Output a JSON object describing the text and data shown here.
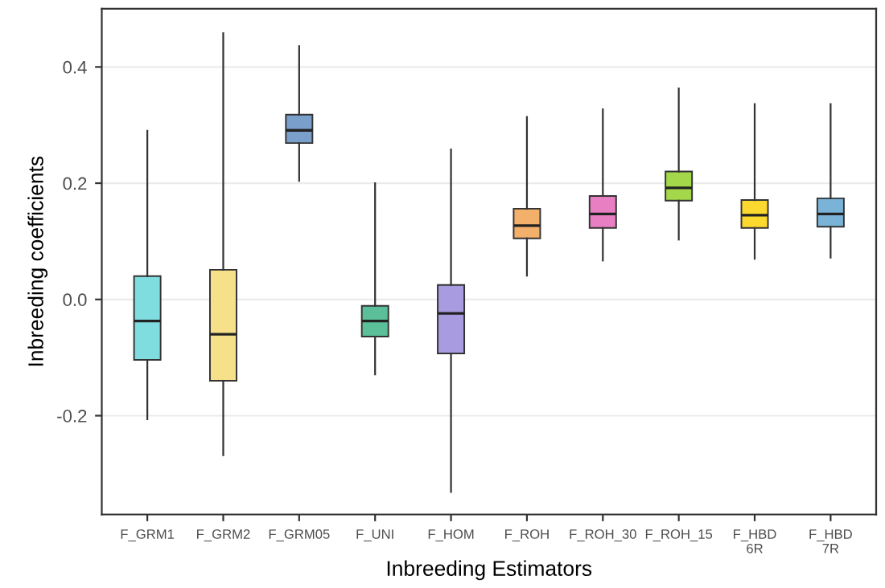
{
  "chart_data": {
    "type": "box",
    "xlabel": "Inbreeding Estimators",
    "ylabel": "Inbreeding coefficients",
    "categories": [
      "F_GRM1",
      "F_GRM2",
      "F_GRM05",
      "F_UNI",
      "F_HOM",
      "F_ROH",
      "F_ROH_30",
      "F_ROH_15",
      "F_HBD\n6R",
      "F_HBD\n7R"
    ],
    "colors": [
      "#7fdde0",
      "#f6e08a",
      "#7b9fcb",
      "#5bbf9a",
      "#a99be0",
      "#f2b06a",
      "#e87fc2",
      "#a4d84a",
      "#fcd92e",
      "#7ab3d8"
    ],
    "boxes": [
      {
        "low": -0.206,
        "q1": -0.104,
        "median": -0.037,
        "q3": 0.04,
        "high": 0.29
      },
      {
        "low": -0.268,
        "q1": -0.14,
        "median": -0.06,
        "q3": 0.051,
        "high": 0.458
      },
      {
        "low": 0.204,
        "q1": 0.269,
        "median": 0.291,
        "q3": 0.318,
        "high": 0.436
      },
      {
        "low": -0.129,
        "q1": -0.064,
        "median": -0.037,
        "q3": -0.011,
        "high": 0.2
      },
      {
        "low": -0.331,
        "q1": -0.093,
        "median": -0.024,
        "q3": 0.025,
        "high": 0.258
      },
      {
        "low": 0.041,
        "q1": 0.105,
        "median": 0.127,
        "q3": 0.156,
        "high": 0.314
      },
      {
        "low": 0.067,
        "q1": 0.123,
        "median": 0.147,
        "q3": 0.178,
        "high": 0.327
      },
      {
        "low": 0.103,
        "q1": 0.17,
        "median": 0.192,
        "q3": 0.22,
        "high": 0.363
      },
      {
        "low": 0.07,
        "q1": 0.123,
        "median": 0.145,
        "q3": 0.171,
        "high": 0.336
      },
      {
        "low": 0.072,
        "q1": 0.125,
        "median": 0.147,
        "q3": 0.174,
        "high": 0.336
      }
    ],
    "ylim": [
      -0.37,
      0.5
    ],
    "yticks": [
      {
        "value": -0.2,
        "label": "-0.2"
      },
      {
        "value": 0.0,
        "label": "0.0"
      },
      {
        "value": 0.2,
        "label": "0.2"
      },
      {
        "value": 0.4,
        "label": "0.4"
      }
    ],
    "grid": "y"
  }
}
